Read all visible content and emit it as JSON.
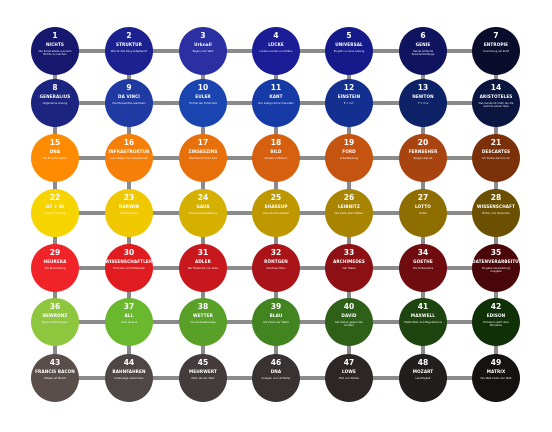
{
  "palette": {
    "line": "#8a8a8a",
    "rows": [
      [
        "#16186e",
        "#1c2190",
        "#2a2fa2",
        "#1a1d95",
        "#151a8a",
        "#10135e",
        "#0a0c2c"
      ],
      [
        "#1b2580",
        "#1f3aa3",
        "#1a45b0",
        "#163aa6",
        "#132f90",
        "#0d2266",
        "#0a1640"
      ],
      [
        "#ff8c00",
        "#f57f08",
        "#e8700b",
        "#d66010",
        "#c45410",
        "#a84410",
        "#7a3008"
      ],
      [
        "#f5d400",
        "#f0c800",
        "#d6b000",
        "#bf9800",
        "#a88400",
        "#8e6e00",
        "#6a5000"
      ],
      [
        "#f02428",
        "#e01c20",
        "#c8181e",
        "#aa1418",
        "#8c1014",
        "#6e0c10",
        "#4a070a"
      ],
      [
        "#8ec63e",
        "#6ab82e",
        "#58a028",
        "#428420",
        "#2e6018",
        "#1e4410",
        "#103008"
      ],
      [
        "#5a4e4b",
        "#4f4646",
        "#443c3c",
        "#383232",
        "#2c2626",
        "#221e1e",
        "#161212"
      ]
    ]
  },
  "nodes": [
    {
      "num": "1",
      "title": "NICHTS",
      "desc": "Die Kunst etwas aus dem Nichts zu machen"
    },
    {
      "num": "2",
      "title": "STRUKTUR",
      "desc": "Wie ist das Ding aufgebaut?"
    },
    {
      "num": "3",
      "title": "Urknall",
      "desc": "Beginn der Welt"
    },
    {
      "num": "4",
      "title": "LÜCKE",
      "desc": "Lücken suchen und füllen"
    },
    {
      "num": "5",
      "title": "UNIVERSAL",
      "desc": "Es gibt nur eine Lösung"
    },
    {
      "num": "6",
      "title": "GENIE",
      "desc": "Genial einfache Zusammenhänge"
    },
    {
      "num": "7",
      "title": "ENTROPIE",
      "desc": "Unordnung als Kraft"
    },
    {
      "num": "8",
      "title": "GENERALIUS",
      "desc": "Allgemeine Lösung"
    },
    {
      "num": "9",
      "title": "DA VINCI",
      "desc": "Die Perspektive wechseln"
    },
    {
      "num": "10",
      "title": "EULER",
      "desc": "Formel der Schönheit"
    },
    {
      "num": "11",
      "title": "KANT",
      "desc": "Der kategorische Imperativ"
    },
    {
      "num": "12",
      "title": "EINSTEIN",
      "desc": "E = mc²"
    },
    {
      "num": "13",
      "title": "NEWTON",
      "desc": "F = m·a"
    },
    {
      "num": "14",
      "title": "ARISTOTELES",
      "desc": "Das Ganze ist mehr als die Summe seiner Teile"
    },
    {
      "num": "15",
      "title": "DNA",
      "desc": "Die Erbinformation"
    },
    {
      "num": "16",
      "title": "INFRASTRUKTUR",
      "desc": "Grundlagen der Gesellschaft"
    },
    {
      "num": "17",
      "title": "ZINSESZINS",
      "desc": "Wachstum durch Zeit"
    },
    {
      "num": "18",
      "title": "BILD",
      "desc": "Denken in Bildern"
    },
    {
      "num": "19",
      "title": "FORD",
      "desc": "Arbeitsteilung"
    },
    {
      "num": "20",
      "title": "FERNSEHER",
      "desc": "Zeigen was ist"
    },
    {
      "num": "21",
      "title": "DESCARTES",
      "desc": "Ich denke also bin ich"
    },
    {
      "num": "22",
      "title": "GT + KI",
      "desc": "Design Thinking"
    },
    {
      "num": "23",
      "title": "DARWIN",
      "desc": "Die Evolution"
    },
    {
      "num": "24",
      "title": "GAUß",
      "desc": "Die Normalverteilung"
    },
    {
      "num": "25",
      "title": "SHAKEUP",
      "desc": "Alles durchschütteln"
    },
    {
      "num": "26",
      "title": "LEIBNITZ",
      "desc": "Die beste aller Welten"
    },
    {
      "num": "27",
      "title": "LOTTO",
      "desc": "Zufall"
    },
    {
      "num": "28",
      "title": "WISSENSCHAFT",
      "desc": "Prüfen und Verwerfen"
    },
    {
      "num": "29",
      "title": "HEUREKA",
      "desc": "Die Erleuchtung"
    },
    {
      "num": "30",
      "title": "WISSENSCHAFTLERIN",
      "desc": "Forschen und Entdecken"
    },
    {
      "num": "31",
      "title": "ADLER",
      "desc": "Der Überblick von oben"
    },
    {
      "num": "32",
      "title": "RÖNTGEN",
      "desc": "Durchleuchten"
    },
    {
      "num": "33",
      "title": "ARCHIMEDES",
      "desc": "Der Hebel"
    },
    {
      "num": "34",
      "title": "GOETHE",
      "desc": "Die Farbenlehre"
    },
    {
      "num": "35",
      "title": "DATENVERARBEITUNG",
      "desc": "Eingabe Verarbeitung Ausgabe"
    },
    {
      "num": "36",
      "title": "NEWRONZ",
      "desc": "Neue Verbindungen"
    },
    {
      "num": "37",
      "title": "ALL",
      "desc": "Alles ist eins"
    },
    {
      "num": "38",
      "title": "WETTER",
      "desc": "Die Großwetterlage"
    },
    {
      "num": "39",
      "title": "BLAU",
      "desc": "Die Farbe der Weite"
    },
    {
      "num": "40",
      "title": "DAVID",
      "desc": "Der Kleine gegen den Großen"
    },
    {
      "num": "41",
      "title": "MAXWELL",
      "desc": "Elektrizität und Magnetismus"
    },
    {
      "num": "42",
      "title": "EDISON",
      "desc": "Probieren geht über Studieren"
    },
    {
      "num": "43",
      "title": "FRANCIS BACON",
      "desc": "Wissen ist Macht"
    },
    {
      "num": "44",
      "title": "BAHNFAHREN",
      "desc": "Unterwegs ankommen"
    },
    {
      "num": "45",
      "title": "MEHRWERT",
      "desc": "Mehr als der Wert"
    },
    {
      "num": "46",
      "title": "DNA",
      "desc": "Anlagen und Umfelder"
    },
    {
      "num": "47",
      "title": "LOWE",
      "desc": "Mut und Stärke"
    },
    {
      "num": "48",
      "title": "MOZART",
      "desc": "Leichtigkeit"
    },
    {
      "num": "49",
      "title": "MATRIX",
      "desc": "Die Welt hinter der Welt"
    }
  ]
}
